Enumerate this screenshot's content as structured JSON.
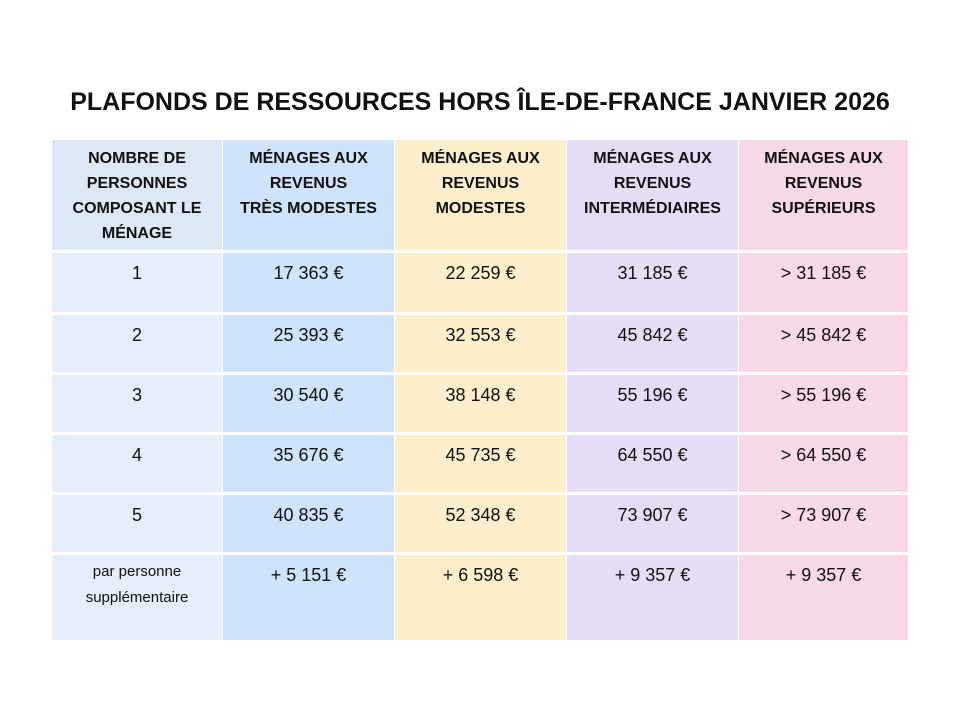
{
  "title": "PLAFONDS DE RESSOURCES HORS ÎLE-DE-FRANCE JANVIER 2026",
  "table": {
    "header": [
      [
        "NOMBRE DE",
        "PERSONNES",
        "COMPOSANT LE",
        "MÉNAGE"
      ],
      [
        "MÉNAGES AUX",
        "REVENUS",
        "TRÈS MODESTES"
      ],
      [
        "MÉNAGES AUX",
        "REVENUS",
        "MODESTES"
      ],
      [
        "MÉNAGES AUX",
        "REVENUS",
        "INTERMÉDIAIRES"
      ],
      [
        "MÉNAGES AUX",
        "REVENUS",
        "SUPÉRIEURS"
      ]
    ],
    "rows": [
      [
        "1",
        "17 363 €",
        "22 259 €",
        "31 185 €",
        "> 31 185 €"
      ],
      [
        "2",
        "25 393 €",
        "32 553 €",
        "45 842 €",
        "> 45 842 €"
      ],
      [
        "3",
        "30 540 €",
        "38 148 €",
        "55 196 €",
        "> 55 196 €"
      ],
      [
        "4",
        "35 676 €",
        "45 735 €",
        "64 550 €",
        "> 64 550 €"
      ],
      [
        "5",
        "40 835 €",
        "52 348 €",
        "73 907 €",
        "> 73 907 €"
      ],
      [
        [
          "par personne",
          "supplémentaire"
        ],
        "+ 5 151 €",
        "+ 6 598 €",
        "+ 9 357 €",
        "+ 9 357 €"
      ]
    ]
  }
}
